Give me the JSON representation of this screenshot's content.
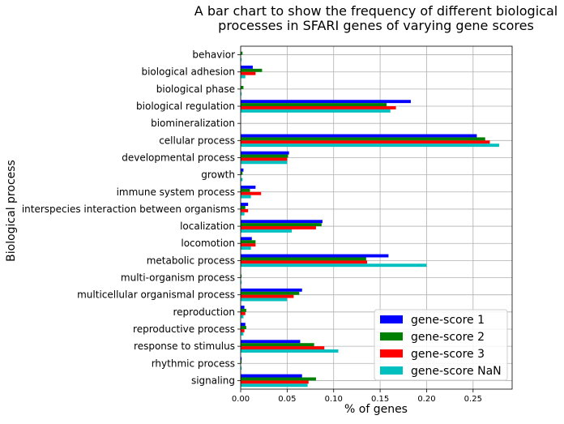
{
  "chart_data": {
    "type": "bar",
    "orientation": "horizontal",
    "title_line1": "A bar chart to show the frequency of different biological",
    "title_line2": "processes in SFARI genes of varying gene scores",
    "xlabel": "% of genes",
    "ylabel": "Biological process",
    "xlim": [
      0,
      0.292
    ],
    "xticks": [
      "0.00",
      "0.05",
      "0.10",
      "0.15",
      "0.20",
      "0.25"
    ],
    "xtick_values": [
      0,
      0.05,
      0.1,
      0.15,
      0.2,
      0.25
    ],
    "grid": true,
    "legend_position": "lower-right",
    "categories": [
      "behavior",
      "biological adhesion",
      "biological phase",
      "biological regulation",
      "biomineralization",
      "cellular process",
      "developmental process",
      "growth",
      "immune system process",
      "interspecies interaction between organisms",
      "localization",
      "locomotion",
      "metabolic process",
      "multi-organism process",
      "multicellular organismal process",
      "reproduction",
      "reproductive process",
      "response to stimulus",
      "rhythmic process",
      "signaling"
    ],
    "series": [
      {
        "name": "gene-score 1",
        "color": "#0000ff",
        "values": [
          0.0,
          0.013,
          0.0,
          0.183,
          0.0,
          0.254,
          0.052,
          0.003,
          0.016,
          0.008,
          0.088,
          0.012,
          0.159,
          0.0,
          0.066,
          0.004,
          0.005,
          0.064,
          0.001,
          0.066
        ]
      },
      {
        "name": "gene-score 2",
        "color": "#008000",
        "values": [
          0.002,
          0.023,
          0.003,
          0.157,
          0.0,
          0.263,
          0.051,
          0.002,
          0.01,
          0.005,
          0.087,
          0.016,
          0.135,
          0.001,
          0.063,
          0.006,
          0.006,
          0.079,
          0.001,
          0.081
        ]
      },
      {
        "name": "gene-score 3",
        "color": "#ff0000",
        "values": [
          0.0,
          0.016,
          0.0,
          0.167,
          0.0,
          0.268,
          0.05,
          0.0,
          0.022,
          0.008,
          0.081,
          0.016,
          0.136,
          0.0,
          0.057,
          0.005,
          0.004,
          0.09,
          0.0,
          0.073
        ]
      },
      {
        "name": "gene-score NaN",
        "color": "#00bfbf",
        "values": [
          0.001,
          0.005,
          0.001,
          0.161,
          0.0,
          0.278,
          0.05,
          0.002,
          0.011,
          0.004,
          0.055,
          0.011,
          0.2,
          0.001,
          0.05,
          0.003,
          0.003,
          0.105,
          0.001,
          0.072
        ]
      }
    ]
  }
}
